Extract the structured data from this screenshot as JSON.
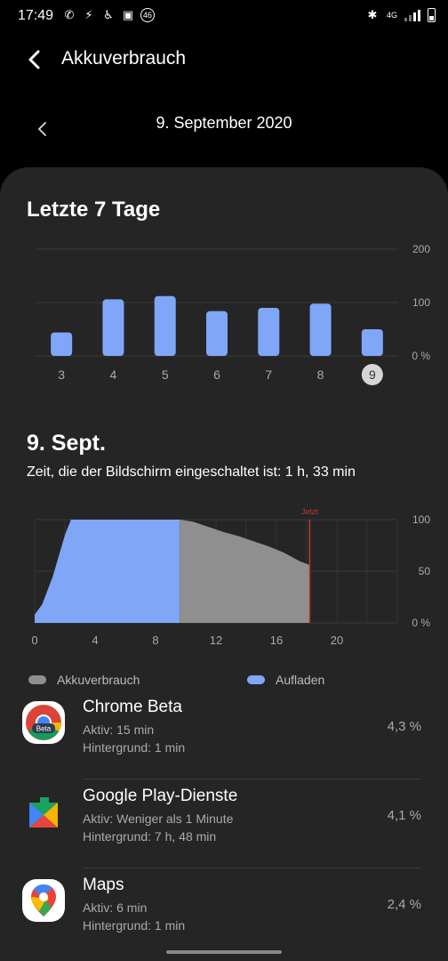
{
  "status": {
    "time": "17:49",
    "lte": "4G",
    "badge": "46"
  },
  "header": {
    "title": "Akkuverbrauch"
  },
  "date": {
    "label": "9. September 2020"
  },
  "week": {
    "title": "Letzte 7 Tage",
    "chart_data": {
      "type": "bar",
      "categories": [
        "3",
        "4",
        "5",
        "6",
        "7",
        "8",
        "9"
      ],
      "values": [
        44,
        106,
        112,
        84,
        90,
        98,
        50
      ],
      "ylim": [
        0,
        200
      ],
      "ytick_labels": [
        "200",
        "100",
        "0 %"
      ],
      "selected": "9",
      "bar_color": "#7fa6f7"
    }
  },
  "day": {
    "title": "9. Sept.",
    "screen_time": "Zeit, die der Bildschirm eingeschaltet ist: 1 h, 33 min",
    "chart_data": {
      "type": "area",
      "x_ticks": [
        "0",
        "4",
        "8",
        "12",
        "16",
        "20"
      ],
      "ytick_labels": [
        "100",
        "50",
        "0 %"
      ],
      "now_label": "Jetzt",
      "now_x": 18.2,
      "xlim": [
        0,
        24
      ],
      "ylim": [
        0,
        100
      ],
      "charging": {
        "name": "Aufladen",
        "color": "#7fa6f7",
        "points": [
          [
            0,
            8
          ],
          [
            0.5,
            18
          ],
          [
            1.2,
            45
          ],
          [
            2,
            85
          ],
          [
            2.4,
            100
          ],
          [
            9.6,
            100
          ],
          [
            9.6,
            0
          ]
        ]
      },
      "discharging": {
        "name": "Akkuverbrauch",
        "color": "#8f8f8f",
        "points": [
          [
            9.6,
            100
          ],
          [
            10.5,
            98
          ],
          [
            11.5,
            93
          ],
          [
            12.5,
            88
          ],
          [
            13.5,
            84
          ],
          [
            14.5,
            79
          ],
          [
            15.5,
            74
          ],
          [
            16.5,
            68
          ],
          [
            17.5,
            60
          ],
          [
            18.2,
            56
          ]
        ]
      }
    }
  },
  "legend": {
    "drain": "Akkuverbrauch",
    "charge": "Aufladen"
  },
  "apps": [
    {
      "name": "Chrome Beta",
      "active": "Aktiv: 15 min",
      "background": "Hintergrund: 1 min",
      "percent": "4,3 %",
      "icon": "chrome-beta-icon",
      "badge": "Beta"
    },
    {
      "name": "Google Play-Dienste",
      "active": "Aktiv: Weniger als 1 Minute",
      "background": "Hintergrund: 7 h, 48 min",
      "percent": "4,1 %",
      "icon": "play-services-icon"
    },
    {
      "name": "Maps",
      "active": "Aktiv: 6 min",
      "background": "Hintergrund: 1 min",
      "percent": "2,4 %",
      "icon": "maps-icon"
    }
  ]
}
